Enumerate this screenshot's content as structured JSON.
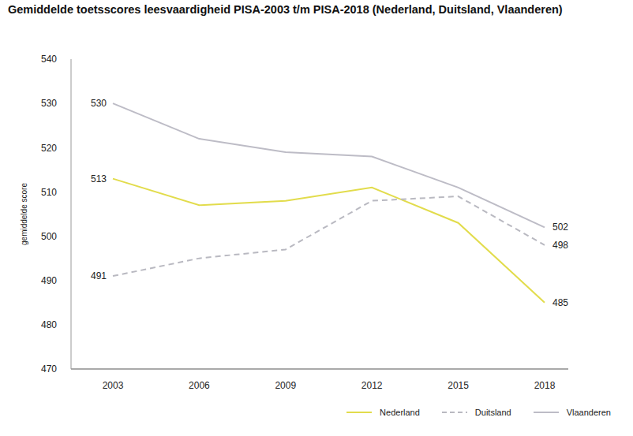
{
  "chart_data": {
    "type": "line",
    "title": "Gemiddelde toetsscores leesvaardigheid PISA-2003 t/m PISA-2018 (Nederland, Duitsland, Vlaanderen)",
    "y_label": "gemiddelde score",
    "categories": [
      "2003",
      "2006",
      "2009",
      "2012",
      "2015",
      "2018"
    ],
    "series": [
      {
        "name": "Nederland",
        "color": "#e2dc4c",
        "line_style": "solid",
        "values": [
          513,
          507,
          508,
          511,
          503,
          485
        ],
        "value_labels": [
          "513",
          null,
          null,
          null,
          null,
          "485"
        ]
      },
      {
        "name": "Duitsland",
        "color": "#b9b9c1",
        "line_style": "dashed",
        "values": [
          491,
          495,
          497,
          508,
          509,
          498
        ],
        "value_labels": [
          "491",
          null,
          null,
          null,
          null,
          "498"
        ]
      },
      {
        "name": "Vlaanderen",
        "color": "#bdbcc6",
        "line_style": "solid",
        "values": [
          530,
          522,
          519,
          518,
          511,
          502
        ],
        "value_labels": [
          "530",
          null,
          null,
          null,
          null,
          "502"
        ]
      }
    ],
    "ylim": [
      470,
      540
    ],
    "yticks": [
      470,
      480,
      490,
      500,
      510,
      520,
      530,
      540
    ],
    "data_labels": true,
    "legend": "bottom-right",
    "grid": false
  }
}
